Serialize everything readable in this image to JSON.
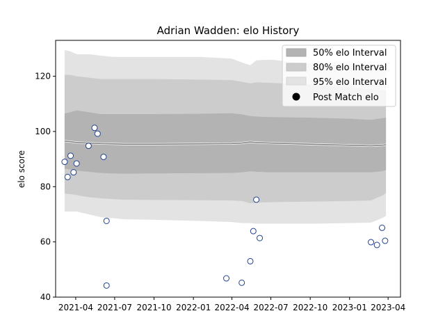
{
  "chart_data": {
    "type": "line",
    "title": "Adrian Wadden: elo History",
    "xlabel": "",
    "ylabel": "elo score",
    "xlim": [
      "2021-02-13",
      "2023-04-30"
    ],
    "ylim": [
      40,
      133
    ],
    "x_ticks": [
      "2021-04",
      "2021-07",
      "2021-10",
      "2022-01",
      "2022-04",
      "2022-07",
      "2022-10",
      "2023-01",
      "2023-04"
    ],
    "y_ticks": [
      40,
      60,
      80,
      100,
      120
    ],
    "grid": false,
    "legend_position": "top-right",
    "legend": [
      {
        "label": "50% elo Interval",
        "kind": "patch",
        "color": "#b3b3b3"
      },
      {
        "label": "80% elo Interval",
        "kind": "patch",
        "color": "#cccccc"
      },
      {
        "label": "95% elo Interval",
        "kind": "patch",
        "color": "#e3e3e3"
      },
      {
        "label": "Post Match elo",
        "kind": "marker",
        "color": "#000000"
      }
    ],
    "bands": {
      "x": [
        "2021-03-06",
        "2021-03-20",
        "2021-04-03",
        "2021-05-01",
        "2021-05-29",
        "2021-06-26",
        "2021-07-24",
        "2021-10-01",
        "2022-01-15",
        "2022-04-01",
        "2022-04-24",
        "2022-05-14",
        "2022-05-28",
        "2022-07-01",
        "2022-10-01",
        "2023-01-01",
        "2023-02-20",
        "2023-03-18",
        "2023-03-27"
      ],
      "median": [
        96.5,
        96.3,
        96.0,
        95.8,
        95.6,
        95.5,
        95.4,
        95.4,
        95.5,
        95.6,
        95.8,
        96.2,
        96.0,
        95.8,
        95.4,
        95.0,
        94.8,
        95.0,
        95.2
      ],
      "q25": [
        86.5,
        86.2,
        85.8,
        85.4,
        85.0,
        84.8,
        84.7,
        84.8,
        84.9,
        85.0,
        85.2,
        85.6,
        85.4,
        85.2,
        85.2,
        85.2,
        85.2,
        85.6,
        86.0
      ],
      "q75": [
        106.5,
        107.0,
        107.6,
        107.0,
        106.3,
        106.3,
        106.3,
        106.3,
        106.4,
        106.6,
        106.2,
        105.6,
        105.4,
        105.2,
        105.0,
        104.6,
        104.2,
        104.8,
        105.0
      ],
      "q10": [
        77.5,
        77.3,
        77.0,
        76.2,
        75.8,
        75.5,
        75.3,
        75.2,
        75.1,
        75.0,
        74.8,
        74.0,
        74.2,
        74.4,
        74.6,
        74.8,
        75.0,
        76.8,
        77.6
      ],
      "q90": [
        120.5,
        120.5,
        120.0,
        119.5,
        119.0,
        119.0,
        119.0,
        119.0,
        118.8,
        118.6,
        118.0,
        117.4,
        117.8,
        117.6,
        117.0,
        116.0,
        115.2,
        115.0,
        115.0
      ],
      "q025": [
        71.0,
        71.0,
        71.0,
        70.0,
        69.0,
        68.6,
        68.2,
        68.0,
        67.6,
        67.2,
        66.8,
        66.8,
        66.6,
        66.6,
        66.6,
        66.8,
        67.0,
        68.6,
        69.4
      ],
      "q975": [
        129.5,
        129.0,
        128.0,
        128.0,
        127.5,
        127.0,
        127.0,
        127.0,
        127.0,
        126.4,
        125.0,
        124.0,
        125.8,
        126.0,
        124.6,
        123.8,
        123.4,
        123.6,
        124.0
      ]
    },
    "points": [
      {
        "x": "2021-03-06",
        "y": 89.0
      },
      {
        "x": "2021-03-13",
        "y": 83.5
      },
      {
        "x": "2021-03-20",
        "y": 91.2
      },
      {
        "x": "2021-03-27",
        "y": 85.2
      },
      {
        "x": "2021-04-03",
        "y": 88.4
      },
      {
        "x": "2021-05-01",
        "y": 94.8
      },
      {
        "x": "2021-05-15",
        "y": 101.3
      },
      {
        "x": "2021-05-22",
        "y": 99.2
      },
      {
        "x": "2021-06-05",
        "y": 90.8
      },
      {
        "x": "2021-06-12",
        "y": 67.6
      },
      {
        "x": "2021-06-12",
        "y": 44.2
      },
      {
        "x": "2022-03-19",
        "y": 46.8
      },
      {
        "x": "2022-04-24",
        "y": 45.2
      },
      {
        "x": "2022-05-14",
        "y": 53.0
      },
      {
        "x": "2022-05-21",
        "y": 63.9
      },
      {
        "x": "2022-05-28",
        "y": 75.3
      },
      {
        "x": "2022-06-05",
        "y": 61.4
      },
      {
        "x": "2023-02-20",
        "y": 59.9
      },
      {
        "x": "2023-03-06",
        "y": 58.9
      },
      {
        "x": "2023-03-18",
        "y": 65.1
      },
      {
        "x": "2023-03-25",
        "y": 60.4
      }
    ],
    "colors": {
      "band95": "#e3e3e3",
      "band80": "#cccccc",
      "band50": "#b3b3b3",
      "median_line": "#7f7f7f",
      "marker_face": "#ffffff",
      "marker_edge": "#1f3f8f"
    }
  }
}
